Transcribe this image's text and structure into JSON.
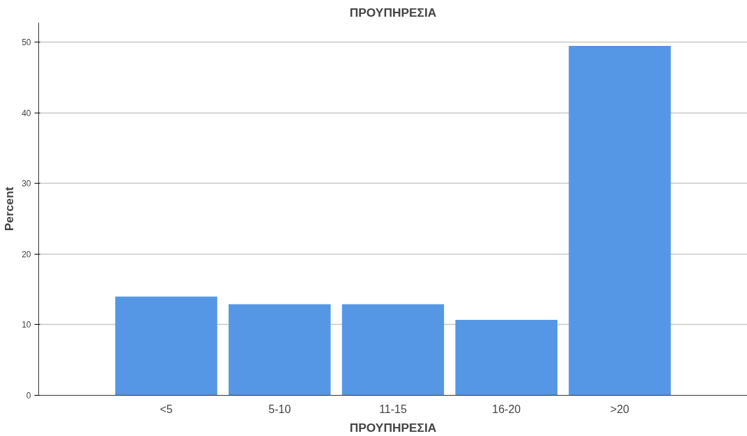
{
  "chart_data": {
    "type": "bar",
    "title": "ΠΡΟΥΠΗΡΕΣΙΑ",
    "xlabel": "ΠΡΟΥΠΗΡΕΣΙΑ",
    "ylabel": "Percent",
    "categories": [
      "<5",
      "5-10",
      "11-15",
      "16-20",
      ">20"
    ],
    "values": [
      14.0,
      12.9,
      12.9,
      10.7,
      49.5
    ],
    "color": "#5597e4",
    "ylim": [
      0,
      52.8
    ],
    "yticks": [
      0,
      10,
      20,
      30,
      40,
      50
    ],
    "grid": "y"
  }
}
